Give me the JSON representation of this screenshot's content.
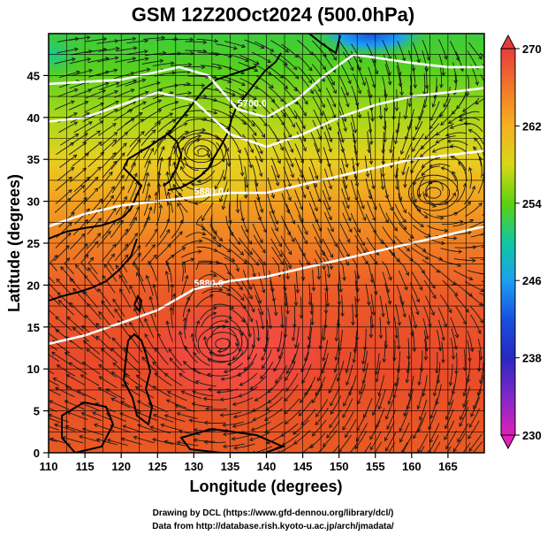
{
  "title": "GSM 12Z20Oct2024 (500.0hPa)",
  "xlabel": "Longitude (degrees)",
  "ylabel": "Latitude  (degrees)",
  "credits": [
    "Drawing by DCL (https://www.gfd-dennou.org/library/dcl/)",
    "Data from http://database.rish.kyoto-u.ac.jp/arch/jmadata/"
  ],
  "chart_data": {
    "type": "heatmap",
    "title": "GSM 12Z20Oct2024 (500.0hPa)",
    "xlabel": "Longitude (degrees)",
    "ylabel": "Latitude  (degrees)",
    "xlim": [
      110,
      170
    ],
    "ylim": [
      0,
      50
    ],
    "x_ticks": [
      "110",
      "115",
      "120",
      "125",
      "130",
      "135",
      "140",
      "145",
      "150",
      "155",
      "160",
      "165"
    ],
    "y_ticks": [
      "0",
      "5",
      "10",
      "15",
      "20",
      "25",
      "30",
      "35",
      "40",
      "45"
    ],
    "grid": true,
    "colorbar": {
      "range": [
        230,
        270
      ],
      "labels": [
        "270",
        "262",
        "254",
        "246",
        "238",
        "230"
      ],
      "colors": [
        "#e83c3c",
        "#f07828",
        "#f6b020",
        "#d8d818",
        "#5cd20e",
        "#10c8a0",
        "#1ca0f0",
        "#1850e0",
        "#2828c0",
        "#8028c8",
        "#e020b8"
      ]
    },
    "contours": [
      {
        "label": "5700.0",
        "lon": [
          110,
          120,
          128,
          132,
          136,
          140,
          144,
          148,
          152,
          156,
          160,
          165,
          170
        ],
        "lat": [
          44.0,
          44.5,
          46.0,
          45.0,
          41.0,
          40.0,
          42.0,
          45.0,
          47.5,
          47.0,
          46.5,
          46.0,
          46.0
        ]
      },
      {
        "label": "5880.0",
        "lon": [
          110,
          115,
          120,
          125,
          130,
          135,
          140,
          145,
          150,
          155,
          160,
          165,
          170
        ],
        "lat": [
          27.0,
          28.5,
          29.5,
          30.0,
          30.5,
          31.0,
          31.0,
          32.0,
          33.0,
          34.0,
          35.0,
          35.5,
          36.0
        ]
      },
      {
        "label": "5880.0",
        "lon": [
          110,
          115,
          120,
          125,
          130,
          135,
          140,
          145,
          150,
          155,
          160,
          165,
          170
        ],
        "lat": [
          13.0,
          14.0,
          15.5,
          17.0,
          19.5,
          20.5,
          21.0,
          22.0,
          23.0,
          24.0,
          25.0,
          26.0,
          27.0
        ]
      },
      {
        "label": "",
        "lon": [
          110,
          115,
          120,
          125,
          130,
          135,
          140,
          145,
          150,
          155,
          160,
          165,
          170
        ],
        "lat": [
          39.5,
          40.0,
          41.5,
          43.0,
          42.0,
          38.0,
          36.5,
          38.0,
          40.0,
          41.5,
          42.5,
          43.0,
          43.5
        ]
      }
    ],
    "pressure_systems": [
      {
        "type": "cyclonic circulation",
        "lon": 134,
        "lat": 13
      },
      {
        "type": "anticyclonic circulation",
        "lon": 163,
        "lat": 31
      },
      {
        "type": "trough center",
        "lon": 131,
        "lat": 36
      }
    ]
  }
}
